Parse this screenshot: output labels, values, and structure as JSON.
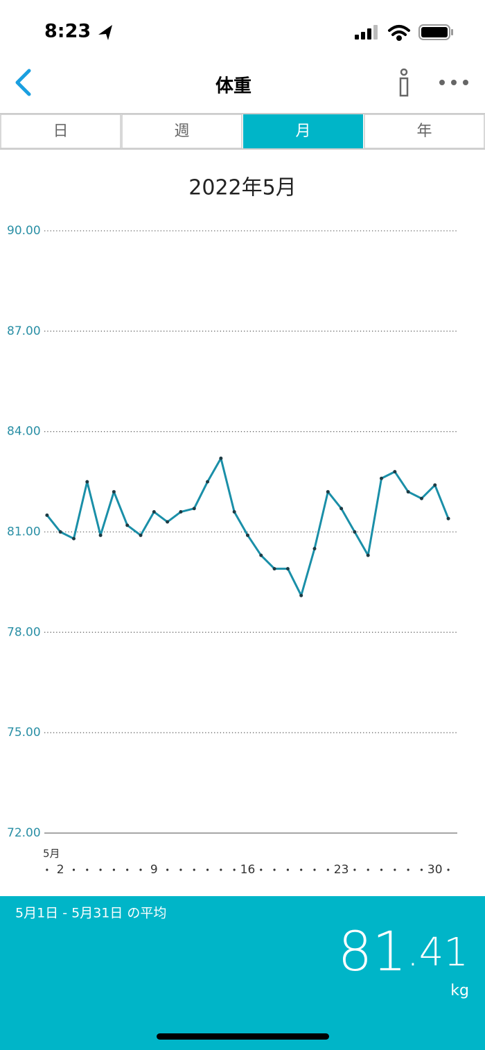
{
  "status_bar": {
    "time": "8:23"
  },
  "nav": {
    "title": "体重"
  },
  "tabs": {
    "items": [
      "日",
      "週",
      "月",
      "年"
    ],
    "selected": 2
  },
  "chart_data": {
    "type": "line",
    "title": "2022年5月",
    "x_axis_label": "5月",
    "x": [
      1,
      2,
      3,
      4,
      5,
      6,
      7,
      8,
      9,
      10,
      11,
      12,
      13,
      14,
      15,
      16,
      17,
      18,
      19,
      20,
      21,
      22,
      23,
      24,
      25,
      26,
      27,
      28,
      29,
      30,
      31
    ],
    "values": [
      81.5,
      81.0,
      80.8,
      82.5,
      80.9,
      82.2,
      81.2,
      80.9,
      81.6,
      81.3,
      81.6,
      81.7,
      82.5,
      83.2,
      81.6,
      80.9,
      80.3,
      79.9,
      79.9,
      79.1,
      80.5,
      82.2,
      81.7,
      81.0,
      80.3,
      82.6,
      82.8,
      82.2,
      82.0,
      82.4,
      81.4
    ],
    "color": "#1a8fa8",
    "xlim": [
      0.8,
      31.67
    ],
    "xticks": [
      2,
      9,
      16,
      23,
      30
    ],
    "ylim": [
      72,
      90
    ],
    "yticks": [
      {
        "value": 72,
        "label": "72.00"
      },
      {
        "value": 75,
        "label": "75.00"
      },
      {
        "value": 78,
        "label": "78.00"
      },
      {
        "value": 81,
        "label": "81.00"
      },
      {
        "value": 84,
        "label": "84.00"
      },
      {
        "value": 87,
        "label": "87.00"
      },
      {
        "value": 90,
        "label": "90.00"
      }
    ],
    "grid": true
  },
  "summary": {
    "period": "5月1日 - 5月31日 の平均",
    "integer": "81",
    "decimal": ".41",
    "unit": "kg"
  }
}
